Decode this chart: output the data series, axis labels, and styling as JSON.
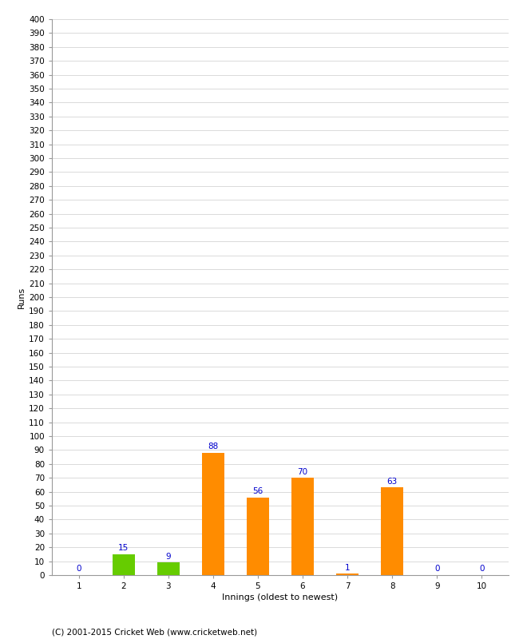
{
  "xlabel": "Innings (oldest to newest)",
  "ylabel": "Runs",
  "categories": [
    "1",
    "2",
    "3",
    "4",
    "5",
    "6",
    "7",
    "8",
    "9",
    "10"
  ],
  "values": [
    0,
    15,
    9,
    88,
    56,
    70,
    1,
    63,
    0,
    0
  ],
  "bar_colors": [
    "#ff8c00",
    "#66cc00",
    "#66cc00",
    "#ff8c00",
    "#ff8c00",
    "#ff8c00",
    "#ff8c00",
    "#ff8c00",
    "#ff8c00",
    "#ff8c00"
  ],
  "ylim": [
    0,
    400
  ],
  "ytick_step": 10,
  "value_color": "#0000cc",
  "value_fontsize": 7.5,
  "axis_label_fontsize": 8,
  "tick_fontsize": 7.5,
  "footer": "(C) 2001-2015 Cricket Web (www.cricketweb.net)",
  "footer_fontsize": 7.5,
  "background_color": "#ffffff",
  "grid_color": "#cccccc",
  "bar_width": 0.5
}
